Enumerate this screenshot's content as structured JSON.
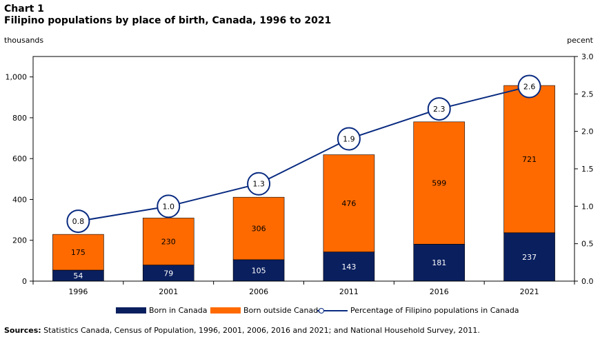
{
  "header": {
    "chart_label": "Chart 1",
    "title": "Filipino  populations  by place of birth, Canada, 1996 to 2021"
  },
  "axes": {
    "left_unit": "thousands",
    "right_unit": "pecent"
  },
  "legend": {
    "born_in": "Born in Canada",
    "born_outside": "Born outside Canada",
    "percentage": "Percentage of Filipino populations in Canada"
  },
  "footer": {
    "sources_label": "Sources:",
    "sources_text": " Statistics Canada, Census of Population, 1996, 2001, 2006, 2016 and 2021; and National Household Survey, 2011."
  },
  "colors": {
    "born_in": "#0a1f5e",
    "born_outside": "#ff6a00",
    "line": "#082a80"
  },
  "chart_data": {
    "type": "bar",
    "stacked": true,
    "categories": [
      "1996",
      "2001",
      "2006",
      "2011",
      "2016",
      "2021"
    ],
    "series": [
      {
        "name": "Born in Canada",
        "values": [
          54,
          79,
          105,
          143,
          181,
          237
        ]
      },
      {
        "name": "Born outside Canada",
        "values": [
          175,
          230,
          306,
          476,
          599,
          721
        ]
      }
    ],
    "line_series": {
      "name": "Percentage of Filipino populations in Canada",
      "axis": "right",
      "values": [
        0.8,
        1.0,
        1.3,
        1.9,
        2.3,
        2.6
      ],
      "labels": [
        "0.8",
        "1.0",
        "1.3",
        "1.9",
        "2.3",
        "2.6"
      ]
    },
    "y_left": {
      "min": 0,
      "max": 1100,
      "ticks": [
        0,
        200,
        400,
        600,
        800,
        1000
      ],
      "tick_labels": [
        "0",
        "200",
        "400",
        "600",
        "800",
        "1,000"
      ]
    },
    "y_right": {
      "min": 0,
      "max": 3.0,
      "ticks": [
        0,
        0.5,
        1.0,
        1.5,
        2.0,
        2.5,
        3.0
      ],
      "tick_labels": [
        "0.0",
        "0.5",
        "1.0",
        "1.5",
        "2.0",
        "2.5",
        "3.0"
      ]
    },
    "grid": false,
    "legend_position": "bottom"
  }
}
